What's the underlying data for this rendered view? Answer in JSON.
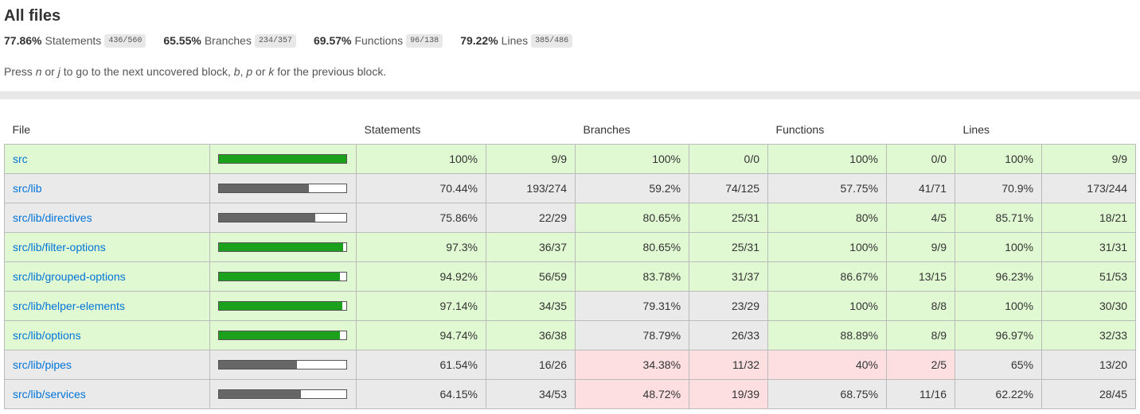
{
  "header": {
    "title": "All files",
    "summary": [
      {
        "pct": "77.86%",
        "label": "Statements",
        "fraction": "436/560"
      },
      {
        "pct": "65.55%",
        "label": "Branches",
        "fraction": "234/357"
      },
      {
        "pct": "69.57%",
        "label": "Functions",
        "fraction": "96/138"
      },
      {
        "pct": "79.22%",
        "label": "Lines",
        "fraction": "385/486"
      }
    ],
    "hint": {
      "p1": "Press ",
      "k1": "n",
      "p2": " or ",
      "k2": "j",
      "p3": " to go to the next uncovered block, ",
      "k3": "b",
      "p4": ", ",
      "k4": "p",
      "p5": " or ",
      "k5": "k",
      "p6": " for the previous block."
    }
  },
  "table": {
    "headers": {
      "file": "File",
      "statements": "Statements",
      "branches": "Branches",
      "functions": "Functions",
      "lines": "Lines"
    },
    "rows": [
      {
        "file": "src",
        "bar": 100,
        "rowClass": "high",
        "s": "100%",
        "sf": "9/9",
        "sc": "high",
        "b": "100%",
        "bf": "0/0",
        "bc": "high",
        "f": "100%",
        "ff": "0/0",
        "fc": "high",
        "l": "100%",
        "lf": "9/9",
        "lc": "high"
      },
      {
        "file": "src/lib",
        "bar": 70.44,
        "rowClass": "medium",
        "s": "70.44%",
        "sf": "193/274",
        "sc": "medium",
        "b": "59.2%",
        "bf": "74/125",
        "bc": "medium",
        "f": "57.75%",
        "ff": "41/71",
        "fc": "medium",
        "l": "70.9%",
        "lf": "173/244",
        "lc": "medium"
      },
      {
        "file": "src/lib/directives",
        "bar": 75.86,
        "rowClass": "medium",
        "s": "75.86%",
        "sf": "22/29",
        "sc": "medium",
        "b": "80.65%",
        "bf": "25/31",
        "bc": "high",
        "f": "80%",
        "ff": "4/5",
        "fc": "high",
        "l": "85.71%",
        "lf": "18/21",
        "lc": "high"
      },
      {
        "file": "src/lib/filter-options",
        "bar": 97.3,
        "rowClass": "high",
        "s": "97.3%",
        "sf": "36/37",
        "sc": "high",
        "b": "80.65%",
        "bf": "25/31",
        "bc": "high",
        "f": "100%",
        "ff": "9/9",
        "fc": "high",
        "l": "100%",
        "lf": "31/31",
        "lc": "high"
      },
      {
        "file": "src/lib/grouped-options",
        "bar": 94.92,
        "rowClass": "high",
        "s": "94.92%",
        "sf": "56/59",
        "sc": "high",
        "b": "83.78%",
        "bf": "31/37",
        "bc": "high",
        "f": "86.67%",
        "ff": "13/15",
        "fc": "high",
        "l": "96.23%",
        "lf": "51/53",
        "lc": "high"
      },
      {
        "file": "src/lib/helper-elements",
        "bar": 97.14,
        "rowClass": "high",
        "s": "97.14%",
        "sf": "34/35",
        "sc": "high",
        "b": "79.31%",
        "bf": "23/29",
        "bc": "medium",
        "f": "100%",
        "ff": "8/8",
        "fc": "high",
        "l": "100%",
        "lf": "30/30",
        "lc": "high"
      },
      {
        "file": "src/lib/options",
        "bar": 94.74,
        "rowClass": "high",
        "s": "94.74%",
        "sf": "36/38",
        "sc": "high",
        "b": "78.79%",
        "bf": "26/33",
        "bc": "medium",
        "f": "88.89%",
        "ff": "8/9",
        "fc": "high",
        "l": "96.97%",
        "lf": "32/33",
        "lc": "high"
      },
      {
        "file": "src/lib/pipes",
        "bar": 61.54,
        "rowClass": "medium",
        "s": "61.54%",
        "sf": "16/26",
        "sc": "medium",
        "b": "34.38%",
        "bf": "11/32",
        "bc": "low",
        "f": "40%",
        "ff": "2/5",
        "fc": "low",
        "l": "65%",
        "lf": "13/20",
        "lc": "medium"
      },
      {
        "file": "src/lib/services",
        "bar": 64.15,
        "rowClass": "medium",
        "s": "64.15%",
        "sf": "34/53",
        "sc": "medium",
        "b": "48.72%",
        "bf": "19/39",
        "bc": "low",
        "f": "68.75%",
        "ff": "11/16",
        "fc": "medium",
        "l": "62.22%",
        "lf": "28/45",
        "lc": "medium"
      }
    ]
  }
}
